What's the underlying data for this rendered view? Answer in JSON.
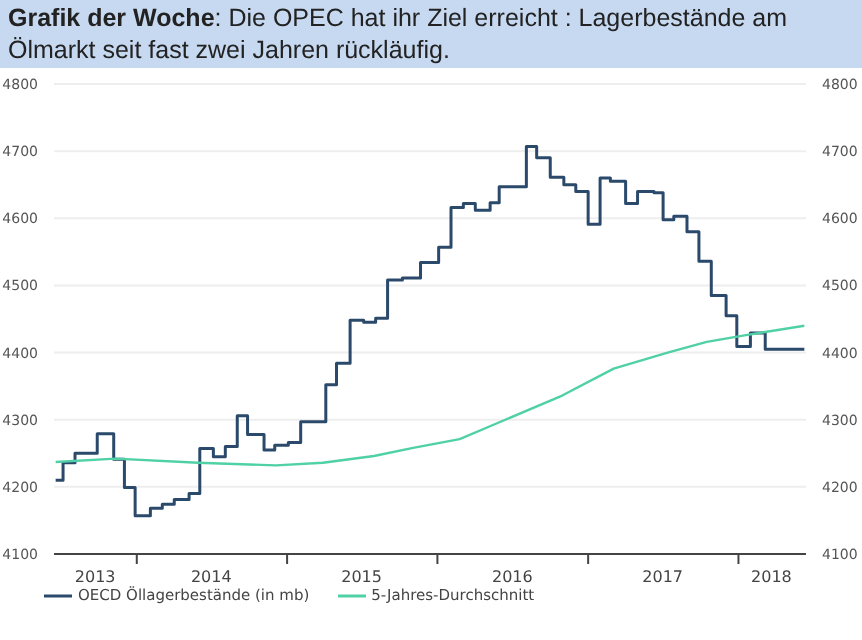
{
  "chart_data": {
    "type": "line",
    "title": "Grafik der Woche: Die OPEC hat ihr Ziel erreicht : Lagerbestände am Ölmarkt seit fast zwei Jahren rückläufig.",
    "xlim": [
      "2013-06-14",
      "2018-06-14"
    ],
    "xticks": [
      {
        "value": "2013-09-22",
        "label": "2013"
      },
      {
        "value": "2014-01-01",
        "label": null
      },
      {
        "value": "2014-07-01",
        "label": "2014"
      },
      {
        "value": "2015-01-01",
        "label": null
      },
      {
        "value": "2015-07-01",
        "label": "2015"
      },
      {
        "value": "2016-01-01",
        "label": null
      },
      {
        "value": "2016-07-01",
        "label": "2016"
      },
      {
        "value": "2017-01-01",
        "label": null
      },
      {
        "value": "2017-07-01",
        "label": "2017"
      },
      {
        "value": "2018-01-01",
        "label": null
      },
      {
        "value": "2018-03-22",
        "label": "2018"
      }
    ],
    "ylim": [
      4100,
      4800
    ],
    "yticks": [
      4100,
      4200,
      4300,
      4400,
      4500,
      4600,
      4700,
      4800
    ],
    "y2lim": [
      4100,
      4800
    ],
    "y2ticks": [
      4100,
      4200,
      4300,
      4400,
      4500,
      4600,
      4700,
      4800
    ],
    "grid": "y",
    "legend": "bottom left",
    "marker": "none",
    "series": [
      {
        "name": "OECD Öllagerbestände (in mb)",
        "type": "step",
        "color": "#2b4a6b",
        "x": [
          "2013-06-18",
          "2013-07-06",
          "2013-08-04",
          "2013-09-27",
          "2013-11-06",
          "2013-12-02",
          "2013-12-28",
          "2014-02-03",
          "2014-03-04",
          "2014-04-02",
          "2014-05-08",
          "2014-06-03",
          "2014-07-06",
          "2014-08-04",
          "2014-09-02",
          "2014-09-27",
          "2014-11-06",
          "2014-12-02",
          "2015-01-04",
          "2015-02-03",
          "2015-04-05",
          "2015-05-01",
          "2015-06-03",
          "2015-07-06",
          "2015-08-04",
          "2015-09-02",
          "2015-10-08",
          "2015-11-21",
          "2016-01-04",
          "2016-02-03",
          "2016-03-04",
          "2016-04-02",
          "2016-05-08",
          "2016-05-30",
          "2016-08-04",
          "2016-08-29",
          "2016-10-01",
          "2016-11-03",
          "2016-12-02",
          "2017-01-01",
          "2017-01-30",
          "2017-02-24",
          "2017-04-02",
          "2017-05-01",
          "2017-06-10",
          "2017-07-02",
          "2017-07-28",
          "2017-08-29",
          "2017-09-27",
          "2017-10-27",
          "2017-12-02",
          "2017-12-28",
          "2018-01-30",
          "2018-03-07",
          "2018-06-10"
        ],
        "values": [
          4210,
          4236,
          4250,
          4279,
          4241,
          4199,
          4157,
          4168,
          4174,
          4181,
          4190,
          4257,
          4245,
          4260,
          4306,
          4278,
          4255,
          4262,
          4266,
          4297,
          4352,
          4384,
          4448,
          4445,
          4451,
          4508,
          4511,
          4534,
          4557,
          4616,
          4622,
          4612,
          4623,
          4647,
          4707,
          4690,
          4661,
          4650,
          4640,
          4591,
          4660,
          4655,
          4622,
          4640,
          4638,
          4598,
          4603,
          4580,
          4536,
          4485,
          4455,
          4409,
          4429,
          4405,
          4405
        ]
      },
      {
        "name": "5-Jahres-Durchschnitt",
        "color": "#4fd1a5",
        "x": [
          "2013-06-18",
          "2013-11-10",
          "2014-05-30",
          "2014-12-05",
          "2015-03-29",
          "2015-07-31",
          "2015-11-03",
          "2016-02-24",
          "2016-05-22",
          "2016-10-30",
          "2017-03-04",
          "2017-07-13",
          "2017-10-16",
          "2018-01-19",
          "2018-06-10"
        ],
        "values": [
          4237,
          4242,
          4236,
          4232,
          4236,
          4246,
          4258,
          4271,
          4294,
          4336,
          4376,
          4400,
          4416,
          4426,
          4440
        ]
      }
    ]
  }
}
